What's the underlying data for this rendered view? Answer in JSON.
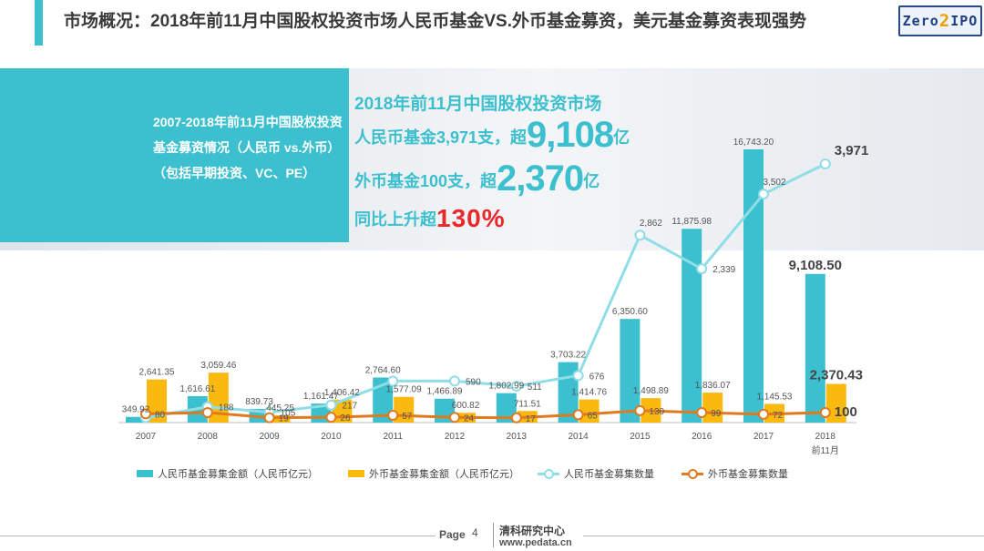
{
  "header": {
    "title": "市场概况：2018年前11月中国股权投资市场人民币基金VS.外币基金募资，美元基金募资表现强势",
    "logo_text_a": "Zero",
    "logo_text_b": "2",
    "logo_text_c": "IPO"
  },
  "banner": {
    "description": "2007-2018年前11月中国股权投资基金募资情况（人民币 vs.外币）（包括早期投资、VC、PE）",
    "headline": "2018年前11月中国股权投资市场",
    "rmb_prefix": "人民币基金3,971支，超",
    "rmb_amount": "9,108",
    "rmb_suffix": "亿",
    "fx_prefix": "外币基金100支，超",
    "fx_amount": "2,370",
    "fx_suffix": "亿",
    "growth_prefix": "同比上升超",
    "growth_value": "130%"
  },
  "chart_data": {
    "type": "bar",
    "categories": [
      "2007",
      "2008",
      "2009",
      "2010",
      "2011",
      "2012",
      "2013",
      "2014",
      "2015",
      "2016",
      "2017",
      "2018"
    ],
    "category_sublabels": [
      "",
      "",
      "",
      "",
      "",
      "",
      "",
      "",
      "",
      "",
      "",
      "前11月"
    ],
    "series": [
      {
        "name": "人民币基金募集金额（人民币亿元）",
        "type": "bar",
        "axis": "amount",
        "color": "#3cbfce",
        "values": [
          349.92,
          1616.61,
          839.73,
          1161.47,
          2764.6,
          1466.89,
          1802.99,
          3703.22,
          6350.6,
          11875.98,
          16743.2,
          9108.5
        ],
        "labels": [
          "349.92",
          "1,616.61",
          "839.73",
          "1,161.47",
          "2,764.60",
          "1,466.89",
          "1,802.99",
          "3,703.22",
          "6,350.60",
          "11,875.98",
          "16,743.20",
          "9,108.50"
        ]
      },
      {
        "name": "外币基金募集金额（人民币亿元）",
        "type": "bar",
        "axis": "amount",
        "color": "#f9b90e",
        "values": [
          2641.35,
          3059.46,
          445.25,
          1406.42,
          1577.09,
          600.82,
          711.51,
          1414.76,
          1498.89,
          1836.07,
          1145.53,
          2370.43
        ],
        "labels": [
          "2,641.35",
          "3,059.46",
          "445.25",
          "1,406.42",
          "1,577.09",
          "600.82",
          "711.51",
          "1,414.76",
          "1,498.89",
          "1,836.07",
          "1,145.53",
          "2,370.43"
        ]
      },
      {
        "name": "人民币基金募集数量",
        "type": "line",
        "axis": "count",
        "color": "#8fdde6",
        "values": [
          20,
          188,
          105,
          217,
          590,
          590,
          511,
          676,
          2862,
          2339,
          3502,
          3971
        ],
        "labels": [
          "",
          "188",
          "105",
          "217",
          "",
          "590",
          "511",
          "676",
          "2,862",
          "2,339",
          "3,502",
          "3,971"
        ]
      },
      {
        "name": "外币基金募集数量",
        "type": "line",
        "axis": "count",
        "color": "#e07a1f",
        "values": [
          80,
          100,
          19,
          26,
          57,
          24,
          17,
          65,
          130,
          99,
          72,
          100
        ],
        "labels": [
          "80",
          "",
          "19",
          "26",
          "57",
          "24",
          "17",
          "65",
          "130",
          "99",
          "72",
          "100"
        ]
      }
    ],
    "legend_position": "bottom",
    "grid": false
  },
  "footer": {
    "page_label": "Page",
    "page_number": "4",
    "org": "清科研究中心",
    "url": "www.pedata.cn"
  }
}
